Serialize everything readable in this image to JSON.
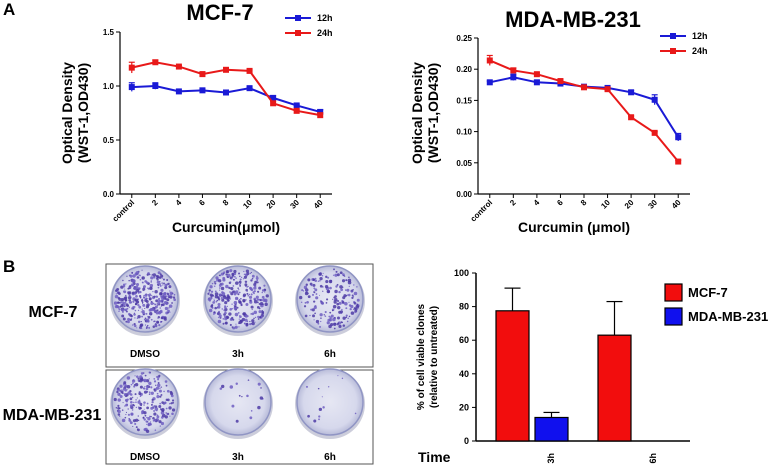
{
  "figure": {
    "panel_a": "A",
    "panel_b": "B"
  },
  "chart_data": [
    {
      "type": "line",
      "title": "MCF-7",
      "xlabel": "Curcumin(μmol)",
      "ylabel": "Optical Density\n(WST-1,OD430)",
      "categories": [
        "control",
        "2",
        "4",
        "6",
        "8",
        "10",
        "20",
        "30",
        "40"
      ],
      "yticks": [
        "0.0",
        "0.5",
        "1.0",
        "1.5"
      ],
      "ylim": [
        0,
        1.5
      ],
      "series": [
        {
          "name": "12h",
          "color": "#1a1ad6",
          "values": [
            0.99,
            1.0,
            0.95,
            0.96,
            0.94,
            0.98,
            0.89,
            0.82,
            0.76
          ],
          "errors": [
            0.04,
            0.03,
            0.01,
            0.01,
            0.01,
            0.01,
            0.02,
            0.01,
            0.02
          ]
        },
        {
          "name": "24h",
          "color": "#e81919",
          "values": [
            1.17,
            1.22,
            1.18,
            1.11,
            1.15,
            1.14,
            0.84,
            0.77,
            0.73
          ],
          "errors": [
            0.05,
            0.02,
            0.01,
            0.02,
            0.01,
            0.01,
            0.02,
            0.01,
            0.02
          ]
        }
      ],
      "legend": "top-right",
      "grid": false
    },
    {
      "type": "line",
      "title": "MDA-MB-231",
      "xlabel": "Curcumin (μmol)",
      "ylabel": "Optical Density\n(WST-1,OD430)",
      "categories": [
        "control",
        "2",
        "4",
        "6",
        "8",
        "10",
        "20",
        "30",
        "40"
      ],
      "yticks": [
        "0.00",
        "0.05",
        "0.10",
        "0.15",
        "0.20",
        "0.25"
      ],
      "ylim": [
        0,
        0.25
      ],
      "series": [
        {
          "name": "12h",
          "color": "#1a1ad6",
          "values": [
            0.179,
            0.187,
            0.179,
            0.177,
            0.172,
            0.17,
            0.163,
            0.151,
            0.091
          ],
          "errors": [
            0.002,
            0.005,
            0.003,
            0.002,
            0.002,
            0.002,
            0.003,
            0.008,
            0.006
          ]
        },
        {
          "name": "24h",
          "color": "#e81919",
          "values": [
            0.214,
            0.198,
            0.192,
            0.181,
            0.171,
            0.168,
            0.123,
            0.098,
            0.052
          ],
          "errors": [
            0.008,
            0.004,
            0.002,
            0.002,
            0.002,
            0.002,
            0.002,
            0.002,
            0.002
          ]
        }
      ],
      "legend": "top-right",
      "grid": false
    },
    {
      "type": "bar",
      "categories": [
        "3h",
        "6h"
      ],
      "x_prefix": "Time",
      "ylabel": "% of cell viable clones\n(relative to untreated)",
      "yticks": [
        "0",
        "20",
        "40",
        "60",
        "80",
        "100"
      ],
      "ylim": [
        0,
        100
      ],
      "series": [
        {
          "name": "MCF-7",
          "color": "#f20d0d",
          "values": [
            77.5,
            63
          ],
          "errors": [
            13.5,
            20
          ]
        },
        {
          "name": "MDA-MB-231",
          "color": "#1010ee",
          "values": [
            14,
            null
          ],
          "errors": [
            3,
            null
          ]
        }
      ],
      "legend": "top-right"
    }
  ],
  "plates": {
    "row_labels": [
      "MCF-7",
      "MDA-MB-231"
    ],
    "col_labels": [
      "DMSO",
      "3h",
      "6h"
    ],
    "density": [
      [
        0.9,
        0.75,
        0.45
      ],
      [
        0.6,
        0.04,
        0.03
      ]
    ]
  }
}
